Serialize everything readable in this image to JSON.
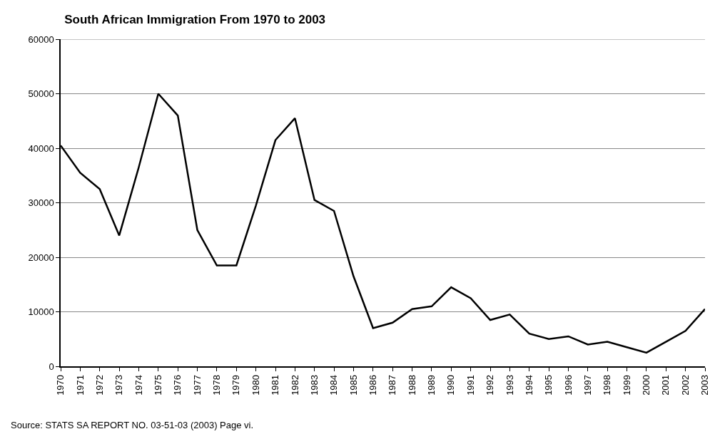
{
  "chart_data": {
    "type": "line",
    "title": "South African Immigration From 1970 to 2003",
    "categories": [
      "1970",
      "1971",
      "1972",
      "1973",
      "1974",
      "1975",
      "1976",
      "1977",
      "1978",
      "1979",
      "1980",
      "1981",
      "1982",
      "1983",
      "1984",
      "1985",
      "1986",
      "1987",
      "1988",
      "1989",
      "1990",
      "1991",
      "1992",
      "1993",
      "1994",
      "1995",
      "1996",
      "1997",
      "1998",
      "1999",
      "2000",
      "2001",
      "2002",
      "2003"
    ],
    "values": [
      40500,
      35500,
      32500,
      24000,
      36500,
      50000,
      46000,
      25000,
      18500,
      18500,
      29500,
      41500,
      45500,
      30500,
      28500,
      16500,
      7000,
      8000,
      10500,
      11000,
      14500,
      12500,
      8500,
      9500,
      6000,
      5000,
      5500,
      4000,
      4500,
      3500,
      2500,
      4500,
      6500,
      10500
    ],
    "color": "#000000",
    "ylim": [
      0,
      60000
    ],
    "yticks": [
      0,
      10000,
      20000,
      30000,
      40000,
      50000,
      60000
    ],
    "grid": "y",
    "legend": false,
    "marker": "none",
    "line_style": "solid",
    "annotations": [
      "Source: STATS SA REPORT NO. 03-51-03 (2003) Page vi."
    ]
  }
}
